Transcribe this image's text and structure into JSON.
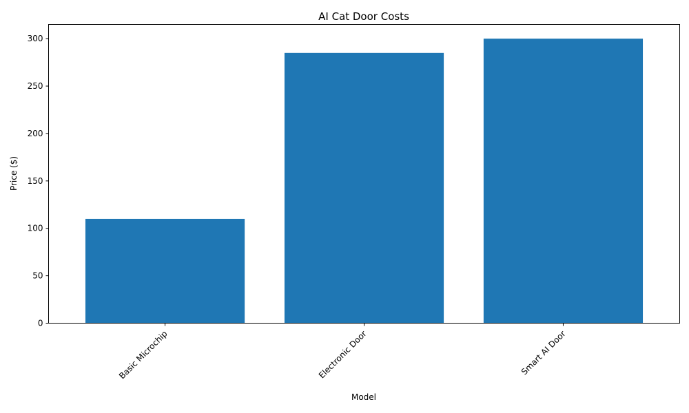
{
  "chart_data": {
    "type": "bar",
    "title": "AI Cat Door Costs",
    "xlabel": "Model",
    "ylabel": "Price ($)",
    "categories": [
      "Basic Microchip",
      "Electronic Door",
      "Smart AI Door"
    ],
    "values": [
      110,
      285,
      300
    ],
    "ylim": [
      0,
      315
    ],
    "yticks": [
      0,
      50,
      100,
      150,
      200,
      250,
      300
    ],
    "bar_color": "#1f77b4",
    "grid": false,
    "legend": "none"
  }
}
